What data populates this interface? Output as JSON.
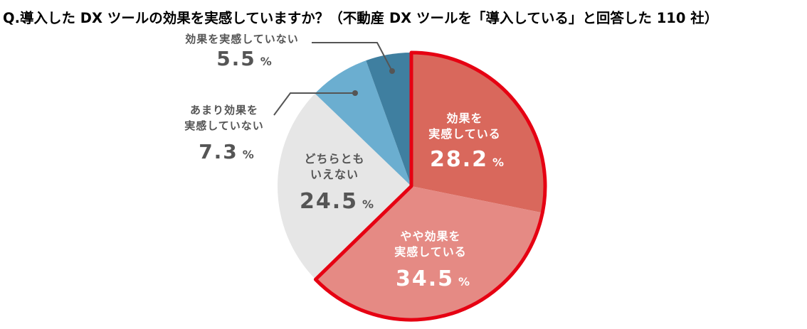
{
  "title": "Q.導入した DX ツールの効果を実感していますか？（不動産 DX ツールを「導入している」と回答した 110 社）",
  "chart_data": {
    "type": "pie",
    "slices": [
      {
        "label_lines": [
          "効果を",
          "実感している"
        ],
        "value": 28.2,
        "value_text": "28.2",
        "unit": "%",
        "color": "#D9685C",
        "highlighted": true
      },
      {
        "label_lines": [
          "やや効果を",
          "実感している"
        ],
        "value": 34.5,
        "value_text": "34.5",
        "unit": "%",
        "color": "#E58A84",
        "highlighted": true
      },
      {
        "label_lines": [
          "どちらとも",
          "いえない"
        ],
        "value": 24.5,
        "value_text": "24.5",
        "unit": "%",
        "color": "#E6E6E6",
        "highlighted": false
      },
      {
        "label_lines": [
          "あまり効果を",
          "実感していない"
        ],
        "value": 7.3,
        "value_text": "7.3",
        "unit": "%",
        "color": "#6BAED0",
        "highlighted": false
      },
      {
        "label_lines": [
          "効果を実感していない"
        ],
        "value": 5.5,
        "value_text": "5.5",
        "unit": "%",
        "color": "#3F7FA0",
        "highlighted": false
      }
    ],
    "start_angle_deg": 0,
    "direction": "clockwise",
    "highlight_outline_color": "#E60012"
  }
}
